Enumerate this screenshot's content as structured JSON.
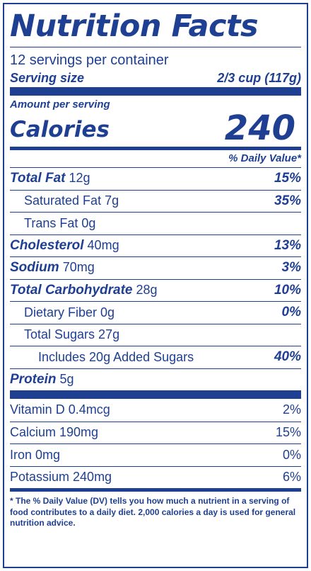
{
  "title": "Nutrition Facts",
  "servings_per_container": "12 servings per container",
  "serving_size": {
    "label": "Serving size",
    "value": "2/3 cup (117g)"
  },
  "amount_per_serving": "Amount per serving",
  "calories": {
    "label": "Calories",
    "value": "240"
  },
  "daily_value_header": "% Daily Value*",
  "nutrients": [
    {
      "name": "Total Fat",
      "amount": "12g",
      "dv": "15%"
    },
    {
      "name": "Saturated Fat 7g",
      "dv": "35%"
    },
    {
      "name": "Trans Fat 0g",
      "dv": ""
    },
    {
      "name": "Cholesterol",
      "amount": "40mg",
      "dv": "13%"
    },
    {
      "name": "Sodium",
      "amount": "70mg",
      "dv": "3%"
    },
    {
      "name": "Total Carbohydrate",
      "amount": "28g",
      "dv": "10%"
    },
    {
      "name": "Dietary Fiber 0g",
      "dv": "0%"
    },
    {
      "name": "Total Sugars 27g",
      "dv": ""
    },
    {
      "name": "Includes 20g Added Sugars",
      "dv": "40%"
    },
    {
      "name": "Protein",
      "amount": "5g",
      "dv": ""
    }
  ],
  "vitamins": [
    {
      "name": "Vitamin D 0.4mcg",
      "dv": "2%"
    },
    {
      "name": "Calcium 190mg",
      "dv": "15%"
    },
    {
      "name": "Iron 0mg",
      "dv": "0%"
    },
    {
      "name": "Potassium 240mg",
      "dv": "6%"
    }
  ],
  "footnote": "* The % Daily Value (DV) tells you how much a nutrient in a serving of food contributes to a daily diet. 2,000 calories a day is used for general nutrition advice.",
  "colors": {
    "ink": "#1f3f92",
    "background": "#ffffff"
  }
}
